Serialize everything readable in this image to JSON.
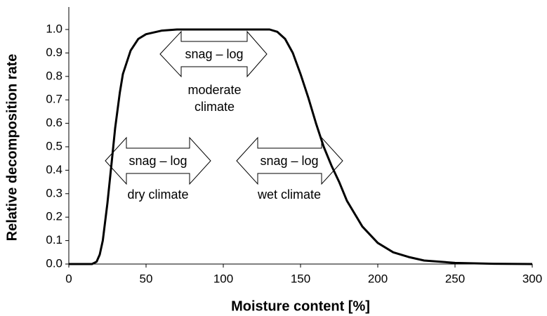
{
  "chart_data": {
    "type": "line",
    "x_label": "Moisture content [%]",
    "y_label": "Relative decomposition rate",
    "x": [
      0,
      10,
      15,
      18,
      20,
      22,
      25,
      28,
      30,
      33,
      35,
      40,
      45,
      50,
      60,
      70,
      80,
      100,
      120,
      130,
      135,
      140,
      145,
      150,
      155,
      160,
      165,
      170,
      175,
      180,
      190,
      200,
      210,
      220,
      230,
      250,
      275,
      300
    ],
    "values": [
      0,
      0,
      0,
      0.01,
      0.04,
      0.1,
      0.26,
      0.45,
      0.58,
      0.73,
      0.81,
      0.91,
      0.96,
      0.98,
      0.995,
      1.0,
      1.0,
      1.0,
      1.0,
      1.0,
      0.99,
      0.96,
      0.9,
      0.81,
      0.71,
      0.6,
      0.5,
      0.42,
      0.35,
      0.27,
      0.16,
      0.09,
      0.05,
      0.03,
      0.015,
      0.005,
      0.001,
      0
    ],
    "color": "#000000",
    "xlim": [
      0,
      300
    ],
    "xticks": [
      0,
      50,
      100,
      150,
      200,
      250,
      300
    ],
    "ylim": [
      0,
      1.0
    ],
    "yticks": [
      {
        "value": 0,
        "label": "0.0"
      },
      0.1,
      0.2,
      0.3,
      0.4,
      0.5,
      0.6,
      0.7,
      0.8,
      0.9,
      {
        "value": 1.0,
        "label": "1.0"
      }
    ],
    "annotations": [
      "snag – log",
      "moderate climate",
      "snag – log",
      "dry climate",
      "snag – log",
      "wet climate"
    ]
  }
}
